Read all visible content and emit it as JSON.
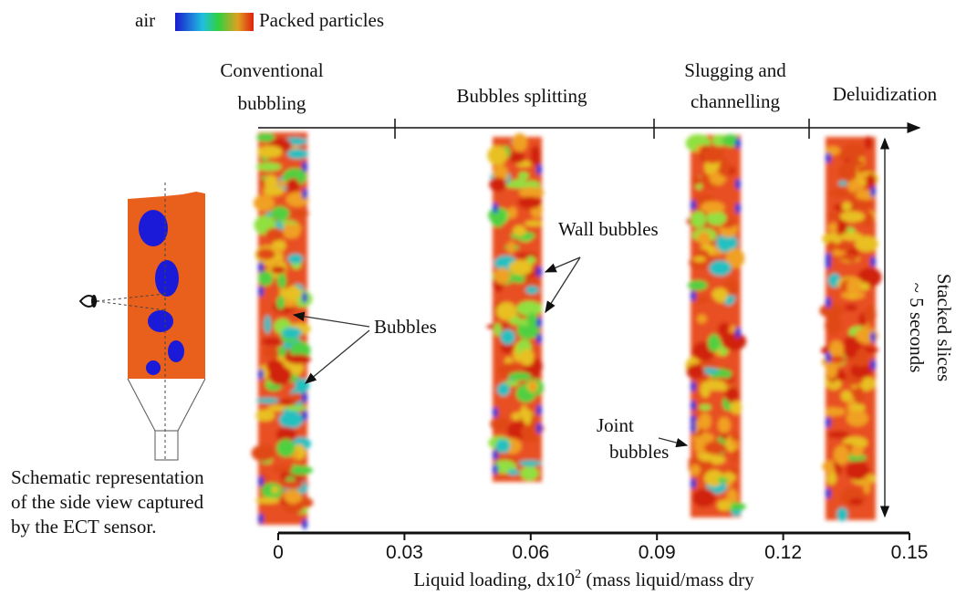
{
  "legend": {
    "low": "air",
    "high": "Packed particles"
  },
  "regimes": [
    {
      "lines": [
        "Conventional",
        "bubbling"
      ]
    },
    {
      "lines": [
        "Bubbles splitting"
      ]
    },
    {
      "lines": [
        "Slugging and",
        "channelling"
      ]
    },
    {
      "lines": [
        "Deluidization"
      ]
    }
  ],
  "annotations": {
    "bubbles": "Bubbles",
    "wall_bubbles": "Wall bubbles",
    "joint_bubbles": [
      "Joint",
      "bubbles"
    ]
  },
  "time_label": [
    "~ 5 seconds",
    "Stacked slices"
  ],
  "schematic_caption": [
    "Schematic representation",
    "of the side view captured",
    "by the ECT sensor."
  ],
  "axis": {
    "label": "Liquid loading, dx10",
    "label_sup": "2",
    "label_end": " (mass liquid/mass dry",
    "range": [
      0,
      0.15
    ],
    "ticks": [
      0,
      0.03,
      0.06,
      0.09,
      0.12,
      0.15
    ]
  }
}
